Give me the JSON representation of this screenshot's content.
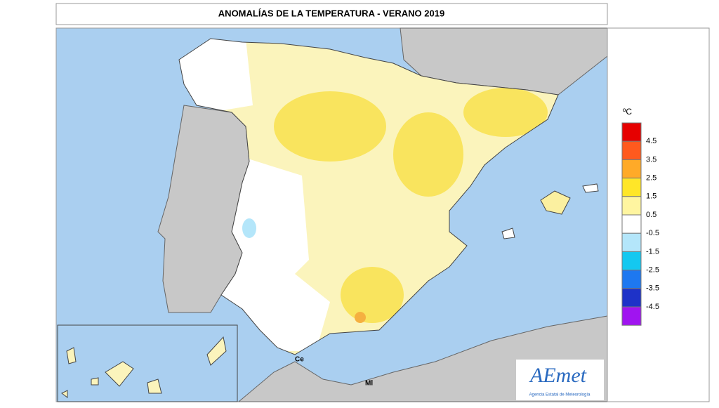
{
  "title": "ANOMALÍAS DE LA TEMPERATURA - VERANO 2019",
  "legend": {
    "unit": "ºC",
    "colors": [
      "#e60000",
      "#ff5a1e",
      "#ffaa28",
      "#ffe628",
      "#fff5a0",
      "#ffffff",
      "#b4e6fa",
      "#14c8f0",
      "#1e78f0",
      "#1e32c8",
      "#a014f0"
    ],
    "ticks": [
      4.5,
      3.5,
      2.5,
      1.5,
      0.5,
      -0.5,
      -1.5,
      -2.5,
      -3.5,
      -4.5
    ]
  },
  "places": [
    "Ce",
    "Ml"
  ],
  "logo": {
    "name": "AEmet",
    "subtitle": "Agencia Estatal de Meteorología"
  }
}
